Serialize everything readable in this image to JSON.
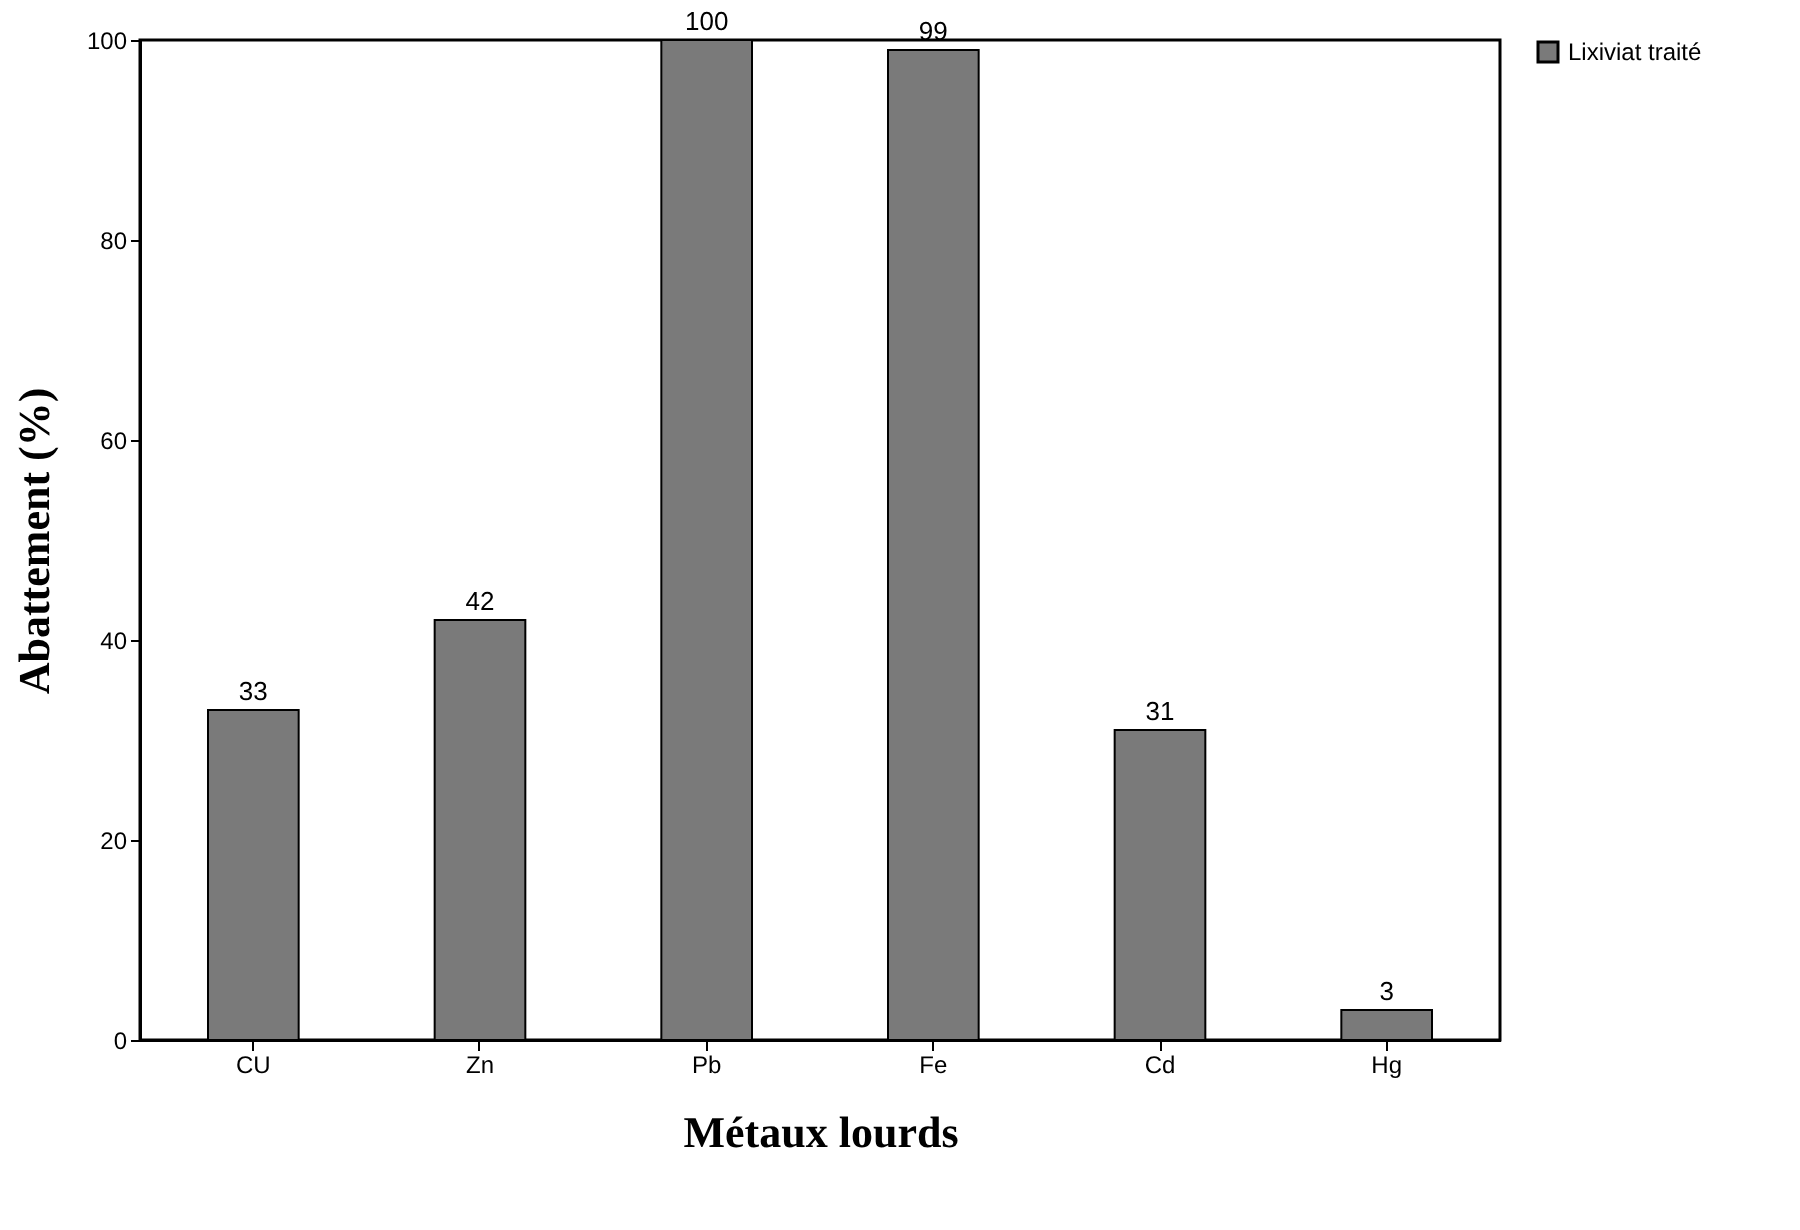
{
  "chart_data": {
    "type": "bar",
    "xlabel": "Métaux lourds",
    "ylabel": "Abattement (%)",
    "categories": [
      "CU",
      "Zn",
      "Pb",
      "Fe",
      "Cd",
      "Hg"
    ],
    "series": [
      {
        "name": "Lixiviat traité",
        "color": "#7a7a7a",
        "values": [
          33,
          42,
          100,
          99,
          31,
          3
        ]
      }
    ],
    "ylim": [
      0,
      100
    ],
    "yticks": [
      0,
      20,
      40,
      60,
      80,
      100
    ],
    "grid": false,
    "legend": "right",
    "data_labels": true
  }
}
